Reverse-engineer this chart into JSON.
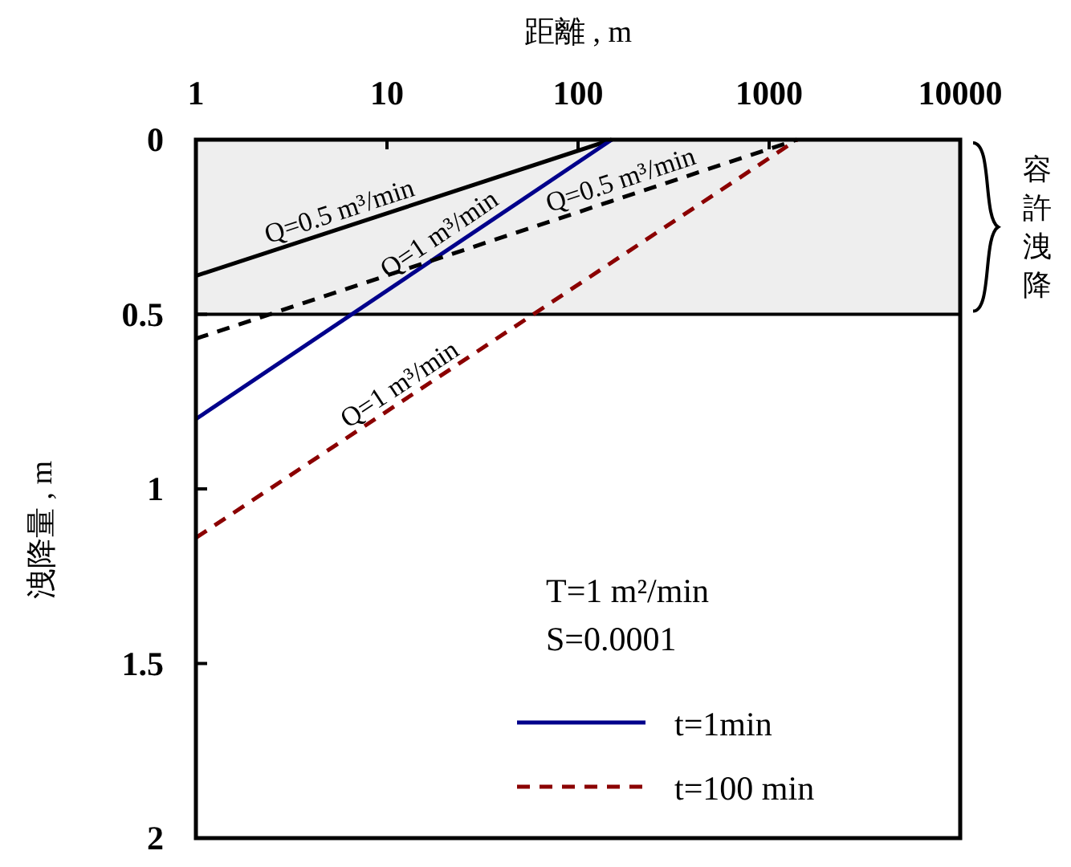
{
  "chart_data": {
    "type": "line",
    "xlabel": "距離 , m",
    "ylabel": "洩降量 , m",
    "log": "x",
    "xlim": [
      1,
      10000
    ],
    "xticks": [
      1,
      10,
      100,
      1000,
      10000
    ],
    "ylim": [
      2,
      0
    ],
    "yticks": [
      0,
      0.5,
      1,
      1.5,
      2
    ],
    "grid": false,
    "legend": "bottom right",
    "marker": "none",
    "series": [
      {
        "color": "#000000",
        "line_style": "solid",
        "x": [
          1,
          150
        ],
        "values": [
          0.39,
          0
        ]
      },
      {
        "name": "t=1min",
        "color": "#00008b",
        "line_style": "solid",
        "x": [
          1,
          150
        ],
        "values": [
          0.8,
          0
        ]
      },
      {
        "color": "#000000",
        "line_style": "dashed",
        "x": [
          1,
          1400
        ],
        "values": [
          0.57,
          0
        ]
      },
      {
        "name": "t=100 min",
        "color": "#8b0000",
        "line_style": "dashed",
        "x": [
          1,
          1400
        ],
        "values": [
          1.14,
          0
        ]
      }
    ],
    "ref_lines": [
      {
        "axis": "y",
        "value": 0.5,
        "color": "#000000",
        "line_style": "solid"
      }
    ],
    "bands": [
      {
        "axis": "y",
        "from": 0,
        "to": 0.5,
        "label": "容許洩降",
        "color": "#eeeeee"
      }
    ],
    "annotations": [
      {
        "text": "Q=0.5 m³/min",
        "x": 6,
        "y": 0.25
      },
      {
        "text": "Q=1 m³/min",
        "x": 21,
        "y": 0.31
      },
      {
        "text": "Q=0.5 m³/min",
        "x": 178,
        "y": 0.16
      },
      {
        "text": "Q=1 m³/min",
        "x": 13,
        "y": 0.74
      },
      "T=1 m²/min",
      "S=0.0001"
    ]
  }
}
